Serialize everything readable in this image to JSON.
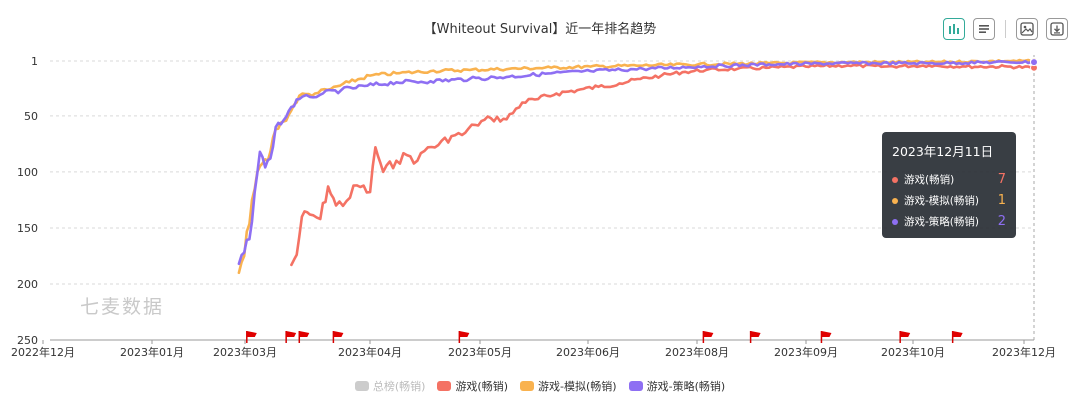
{
  "title": "【Whiteout Survival】近一年排名趋势",
  "watermark": "七麦数据",
  "toolbar": {
    "icons": [
      "bar-chart-icon",
      "list-icon",
      "image-icon",
      "download-icon"
    ]
  },
  "tooltip": {
    "date": "2023年12月11日",
    "rows": [
      {
        "label": "游戏(畅销)",
        "value": "7",
        "color": "#f47264"
      },
      {
        "label": "游戏-模拟(畅销)",
        "value": "1",
        "color": "#f9b24f"
      },
      {
        "label": "游戏-策略(畅销)",
        "value": "2",
        "color": "#8e6ff3"
      }
    ]
  },
  "legend": [
    {
      "label": "总榜(畅销)",
      "color": "#cccccc",
      "active": false
    },
    {
      "label": "游戏(畅销)",
      "color": "#f47264",
      "active": true
    },
    {
      "label": "游戏-模拟(畅销)",
      "color": "#f9b24f",
      "active": true
    },
    {
      "label": "游戏-策略(畅销)",
      "color": "#8e6ff3",
      "active": true
    }
  ],
  "chart_data": {
    "type": "line",
    "title": "【Whiteout Survival】近一年排名趋势",
    "x_ticks": [
      "2022年12月",
      "2023年01月",
      "2023年03月",
      "2023年04月",
      "2023年05月",
      "2023年06月",
      "2023年08月",
      "2023年09月",
      "2023年10月",
      "2023年12月"
    ],
    "y_ticks": [
      "1",
      "50",
      "100",
      "150",
      "200",
      "250"
    ],
    "y_axis": {
      "min": 1,
      "max": 250,
      "inverted": true
    },
    "grid": true,
    "legend_position": "bottom",
    "series": [
      {
        "name": "游戏(畅销)",
        "color": "#f47264",
        "points": [
          [
            "2023-03-03",
            183
          ],
          [
            "2023-03-05",
            174
          ],
          [
            "2023-03-07",
            140
          ],
          [
            "2023-03-10",
            138
          ],
          [
            "2023-03-14",
            142
          ],
          [
            "2023-03-17",
            113
          ],
          [
            "2023-03-20",
            130
          ],
          [
            "2023-03-24",
            126
          ],
          [
            "2023-03-28",
            112
          ],
          [
            "2023-04-02",
            118
          ],
          [
            "2023-04-04",
            78
          ],
          [
            "2023-04-07",
            100
          ],
          [
            "2023-04-12",
            90
          ],
          [
            "2023-04-16",
            85
          ],
          [
            "2023-04-20",
            90
          ],
          [
            "2023-04-24",
            78
          ],
          [
            "2023-04-28",
            76
          ],
          [
            "2023-05-03",
            68
          ],
          [
            "2023-05-07",
            67
          ],
          [
            "2023-05-12",
            58
          ],
          [
            "2023-05-18",
            52
          ],
          [
            "2023-05-24",
            53
          ],
          [
            "2023-05-30",
            38
          ],
          [
            "2023-06-05",
            35
          ],
          [
            "2023-06-12",
            30
          ],
          [
            "2023-06-20",
            27
          ],
          [
            "2023-06-28",
            24
          ],
          [
            "2023-07-06",
            21
          ],
          [
            "2023-07-14",
            17
          ],
          [
            "2023-07-22",
            14
          ],
          [
            "2023-07-30",
            11
          ],
          [
            "2023-08-08",
            9
          ],
          [
            "2023-08-20",
            8
          ],
          [
            "2023-09-01",
            7
          ],
          [
            "2023-09-15",
            6
          ],
          [
            "2023-10-01",
            5
          ],
          [
            "2023-10-15",
            6
          ],
          [
            "2023-11-01",
            5
          ],
          [
            "2023-11-15",
            6
          ],
          [
            "2023-12-01",
            6
          ],
          [
            "2023-12-11",
            7
          ]
        ]
      },
      {
        "name": "游戏-模拟(畅销)",
        "color": "#f9b24f",
        "points": [
          [
            "2023-02-11",
            190
          ],
          [
            "2023-02-13",
            175
          ],
          [
            "2023-02-16",
            125
          ],
          [
            "2023-02-19",
            95
          ],
          [
            "2023-02-22",
            90
          ],
          [
            "2023-02-25",
            62
          ],
          [
            "2023-02-28",
            55
          ],
          [
            "2023-03-03",
            45
          ],
          [
            "2023-03-06",
            32
          ],
          [
            "2023-03-12",
            30
          ],
          [
            "2023-03-18",
            26
          ],
          [
            "2023-03-25",
            20
          ],
          [
            "2023-04-02",
            14
          ],
          [
            "2023-04-12",
            12
          ],
          [
            "2023-04-25",
            10
          ],
          [
            "2023-05-10",
            9
          ],
          [
            "2023-05-25",
            8
          ],
          [
            "2023-06-10",
            7
          ],
          [
            "2023-06-25",
            6
          ],
          [
            "2023-07-15",
            5
          ],
          [
            "2023-08-05",
            4
          ],
          [
            "2023-09-01",
            3
          ],
          [
            "2023-10-01",
            2
          ],
          [
            "2023-11-01",
            2
          ],
          [
            "2023-12-01",
            1
          ],
          [
            "2023-12-11",
            1
          ]
        ]
      },
      {
        "name": "游戏-策略(畅销)",
        "color": "#8e6ff3",
        "points": [
          [
            "2023-02-11",
            182
          ],
          [
            "2023-02-13",
            172
          ],
          [
            "2023-02-15",
            160
          ],
          [
            "2023-02-17",
            118
          ],
          [
            "2023-02-19",
            82
          ],
          [
            "2023-02-21",
            96
          ],
          [
            "2023-02-23",
            88
          ],
          [
            "2023-02-25",
            60
          ],
          [
            "2023-02-28",
            54
          ],
          [
            "2023-03-03",
            42
          ],
          [
            "2023-03-06",
            35
          ],
          [
            "2023-03-10",
            33
          ],
          [
            "2023-03-15",
            30
          ],
          [
            "2023-03-22",
            27
          ],
          [
            "2023-04-01",
            23
          ],
          [
            "2023-04-12",
            20
          ],
          [
            "2023-04-25",
            19
          ],
          [
            "2023-05-10",
            17
          ],
          [
            "2023-05-25",
            15
          ],
          [
            "2023-06-10",
            12
          ],
          [
            "2023-06-25",
            10
          ],
          [
            "2023-07-15",
            8
          ],
          [
            "2023-08-05",
            6
          ],
          [
            "2023-09-01",
            4
          ],
          [
            "2023-10-01",
            3
          ],
          [
            "2023-11-01",
            3
          ],
          [
            "2023-12-01",
            2
          ],
          [
            "2023-12-11",
            2
          ]
        ]
      }
    ],
    "flag_dates": [
      "2023-02-14",
      "2023-03-01",
      "2023-03-06",
      "2023-03-19",
      "2023-05-06",
      "2023-08-07",
      "2023-08-25",
      "2023-09-21",
      "2023-10-21",
      "2023-11-10"
    ]
  }
}
